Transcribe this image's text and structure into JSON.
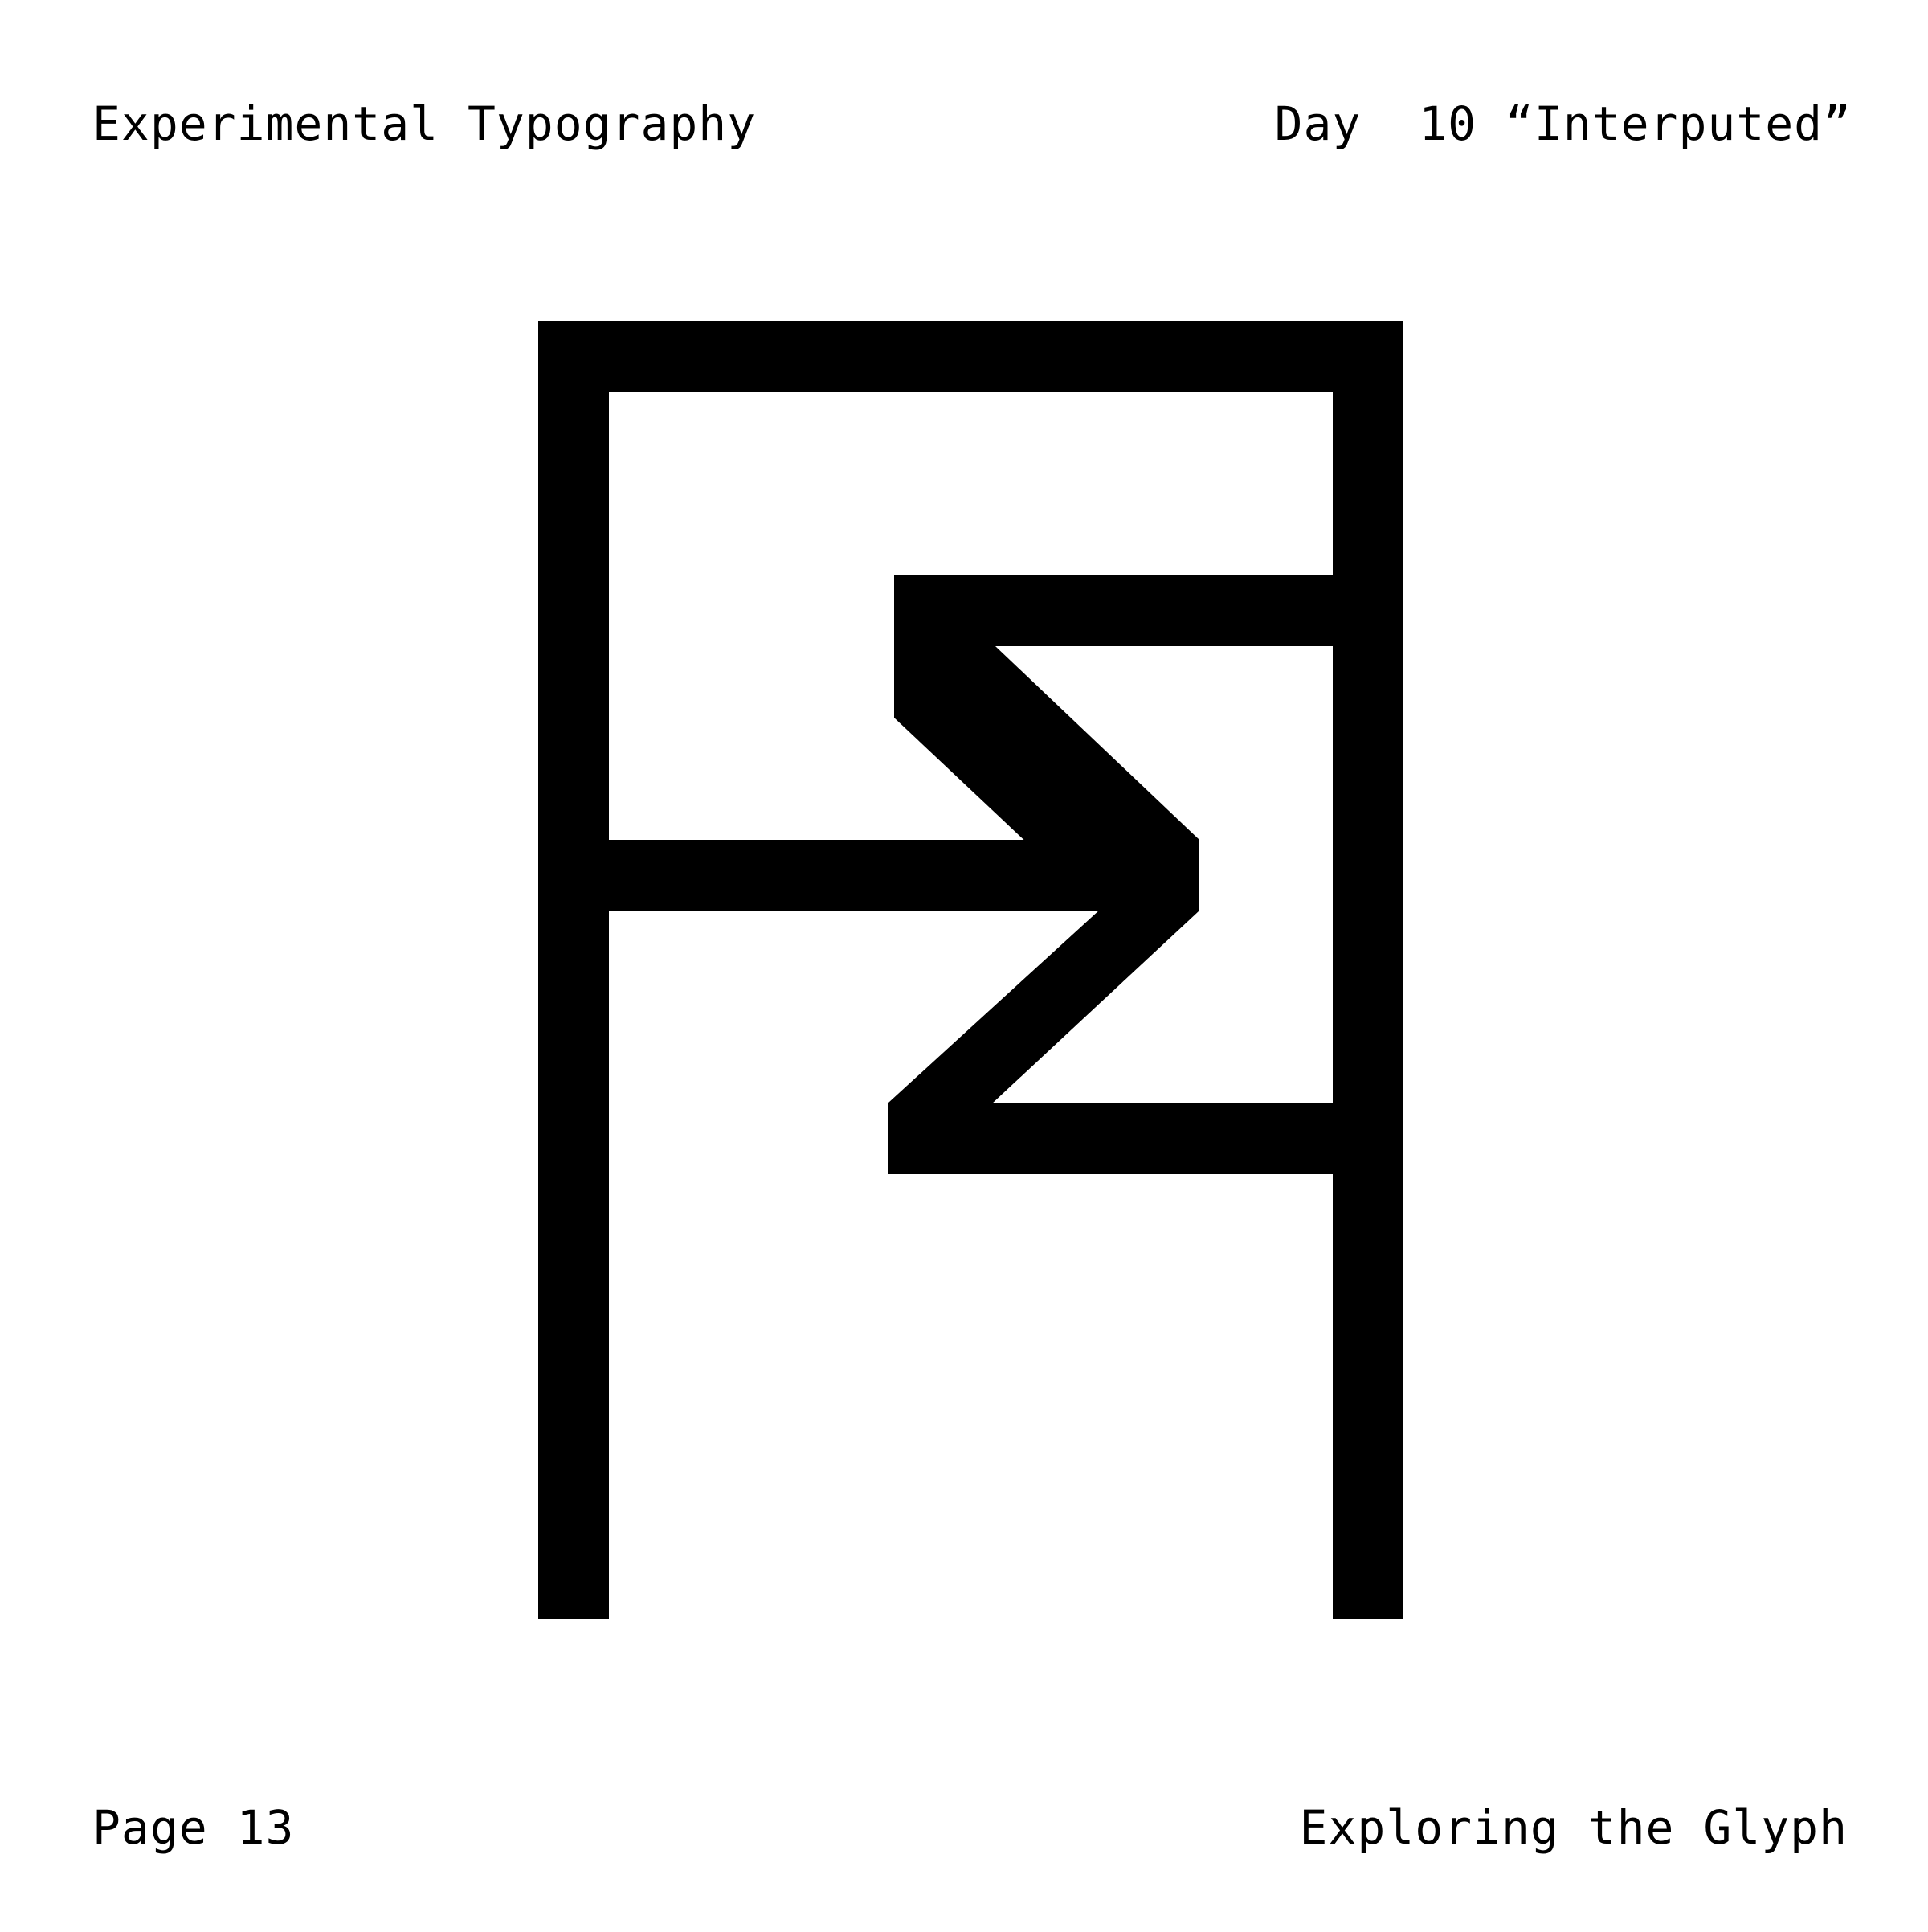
{
  "header": {
    "left_title": "Experimental Typography",
    "right_title": "Day  10 “Interputed”"
  },
  "footer": {
    "page_label": "Page 13",
    "right_caption": "Exploring the Glyph"
  },
  "colors": {
    "ink": "#000000",
    "paper": "#ffffff"
  },
  "artwork": {
    "icon": "interrupted-glyph-icon"
  }
}
